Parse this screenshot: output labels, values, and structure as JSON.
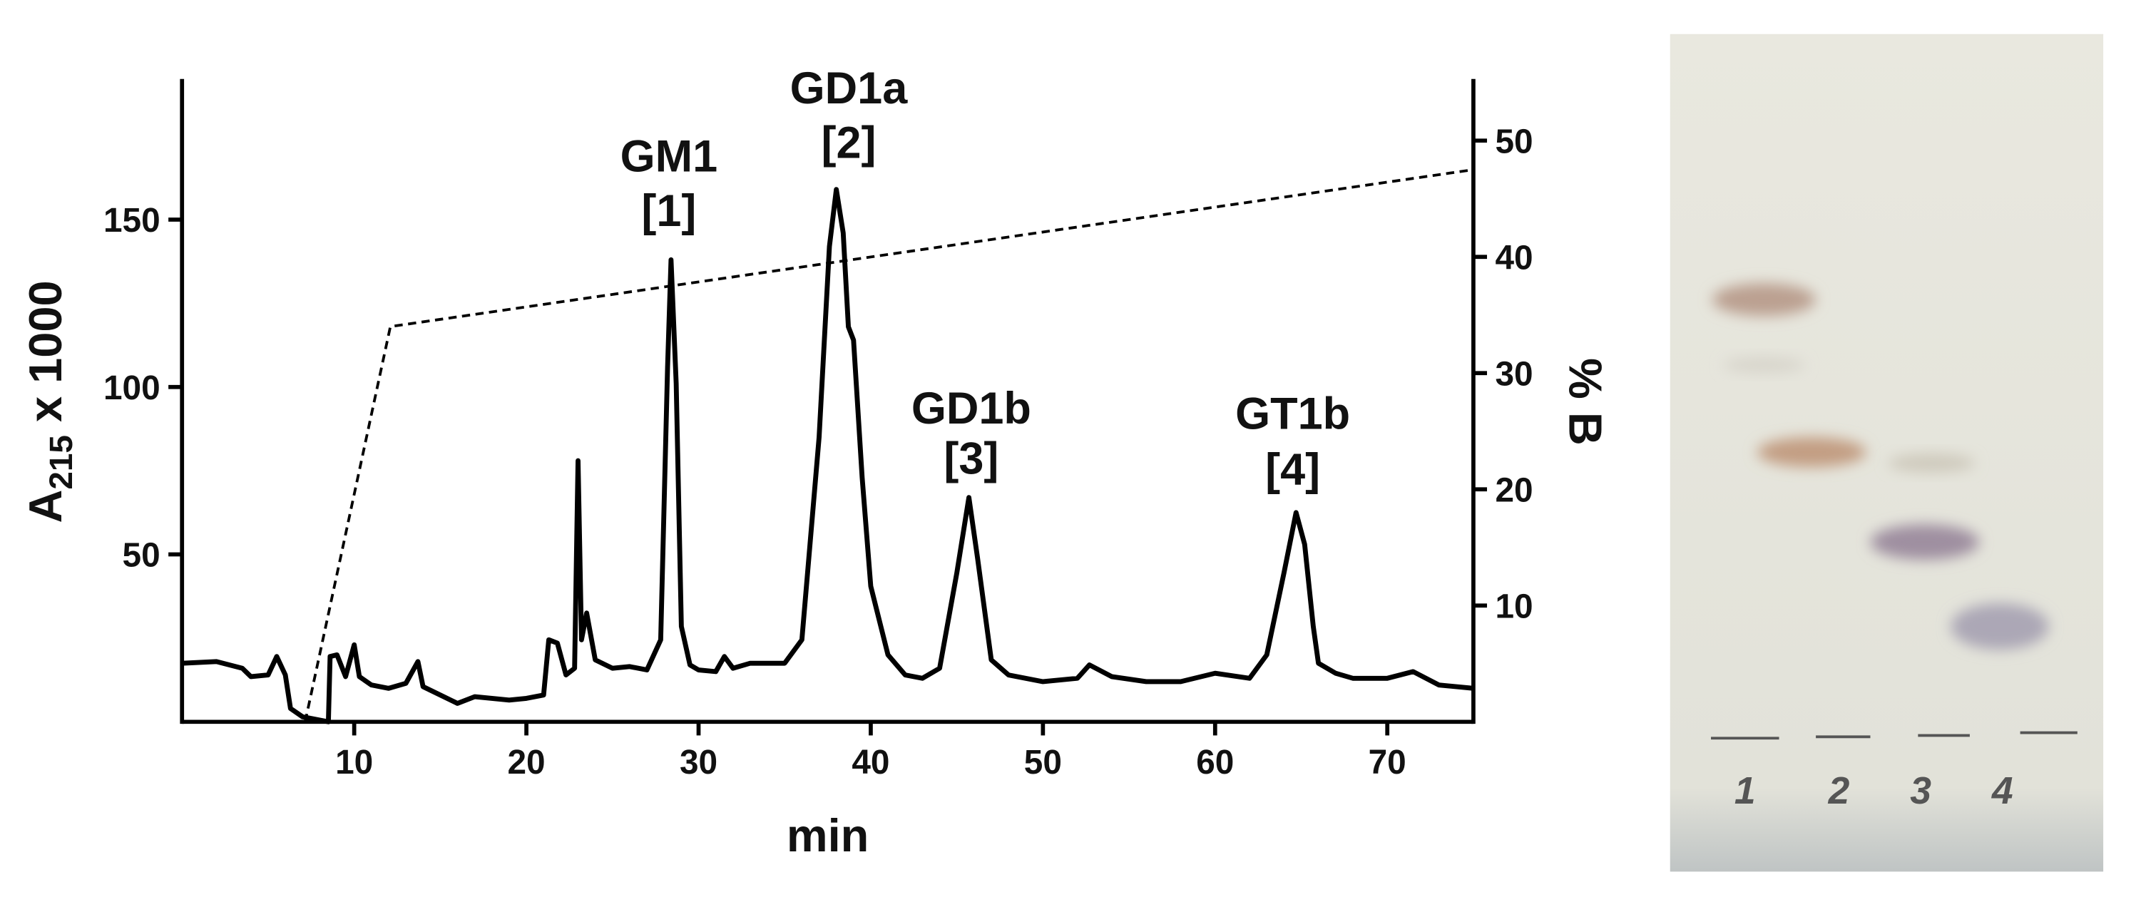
{
  "chart_data": {
    "type": "line",
    "xlabel": "min",
    "ylabel": [
      "A",
      "215",
      " x 1000"
    ],
    "y2label": "% B",
    "xlim": [
      0,
      75
    ],
    "xticks": [
      10,
      20,
      30,
      40,
      50,
      60,
      70
    ],
    "ylim": [
      0,
      192
    ],
    "yticks": [
      50,
      100,
      150
    ],
    "y2lim": [
      0,
      55.3
    ],
    "y2ticks": [
      10,
      20,
      30,
      40,
      50
    ],
    "series": [
      {
        "color": "#000000",
        "x": [
          0,
          2,
          3.5,
          4,
          5,
          5.5,
          6,
          6.3,
          7,
          8.5,
          8.6,
          9,
          9.5,
          10,
          10.3,
          11,
          12,
          13,
          13.7,
          14,
          15,
          16,
          17,
          19,
          20,
          21,
          21.3,
          21.8,
          22.3,
          22.8,
          23,
          23.2,
          23.5,
          24,
          25,
          26,
          27,
          27.8,
          28.2,
          28.4,
          28.7,
          29,
          29.5,
          30,
          31,
          31.5,
          32,
          33,
          35,
          36,
          37,
          37.6,
          38,
          38.4,
          38.7,
          39,
          39.5,
          40,
          41,
          42,
          43,
          44,
          45,
          45.7,
          46.2,
          47,
          48,
          50,
          52,
          52.7,
          54,
          56,
          58,
          60,
          62,
          63,
          64,
          64.7,
          65.2,
          65.7,
          66,
          67,
          68,
          70,
          71.5,
          73,
          75
        ],
        "values": [
          17.5,
          18,
          16,
          13.5,
          14,
          19.5,
          14,
          4,
          1.5,
          0,
          19.5,
          20,
          13.5,
          23,
          13.5,
          11,
          10,
          11.5,
          18,
          10.5,
          8,
          5.5,
          7.5,
          6.5,
          7,
          8,
          24.5,
          23.5,
          14,
          16,
          78,
          24.5,
          32.5,
          18.5,
          16,
          16.5,
          15.5,
          24.5,
          106,
          138,
          101,
          28.5,
          17,
          15.5,
          15,
          19.5,
          16,
          17.5,
          17.5,
          24.5,
          85,
          142,
          159,
          146,
          118,
          114,
          73,
          40.5,
          20,
          14,
          13,
          16,
          44.5,
          67,
          49,
          18.5,
          14,
          12,
          13,
          17,
          13.5,
          12,
          12,
          14.5,
          13,
          20,
          44.5,
          62.5,
          53,
          28.5,
          17.5,
          14.5,
          13,
          13,
          15,
          11,
          10
        ]
      },
      {
        "color": "#000000",
        "axis": "y2",
        "dashed": true,
        "x": [
          7.15,
          12.1,
          75
        ],
        "values": [
          0,
          34,
          47.5
        ]
      }
    ],
    "annotations": [
      {
        "name": "GM1",
        "label": "[1]"
      },
      {
        "name": "GD1a",
        "label": "[2]"
      },
      {
        "name": "GD1b",
        "label": "[3]"
      },
      {
        "name": "GT1b",
        "label": "[4]"
      }
    ]
  },
  "tlc": {
    "lanes": [
      "1",
      "2",
      "3",
      "4"
    ]
  }
}
